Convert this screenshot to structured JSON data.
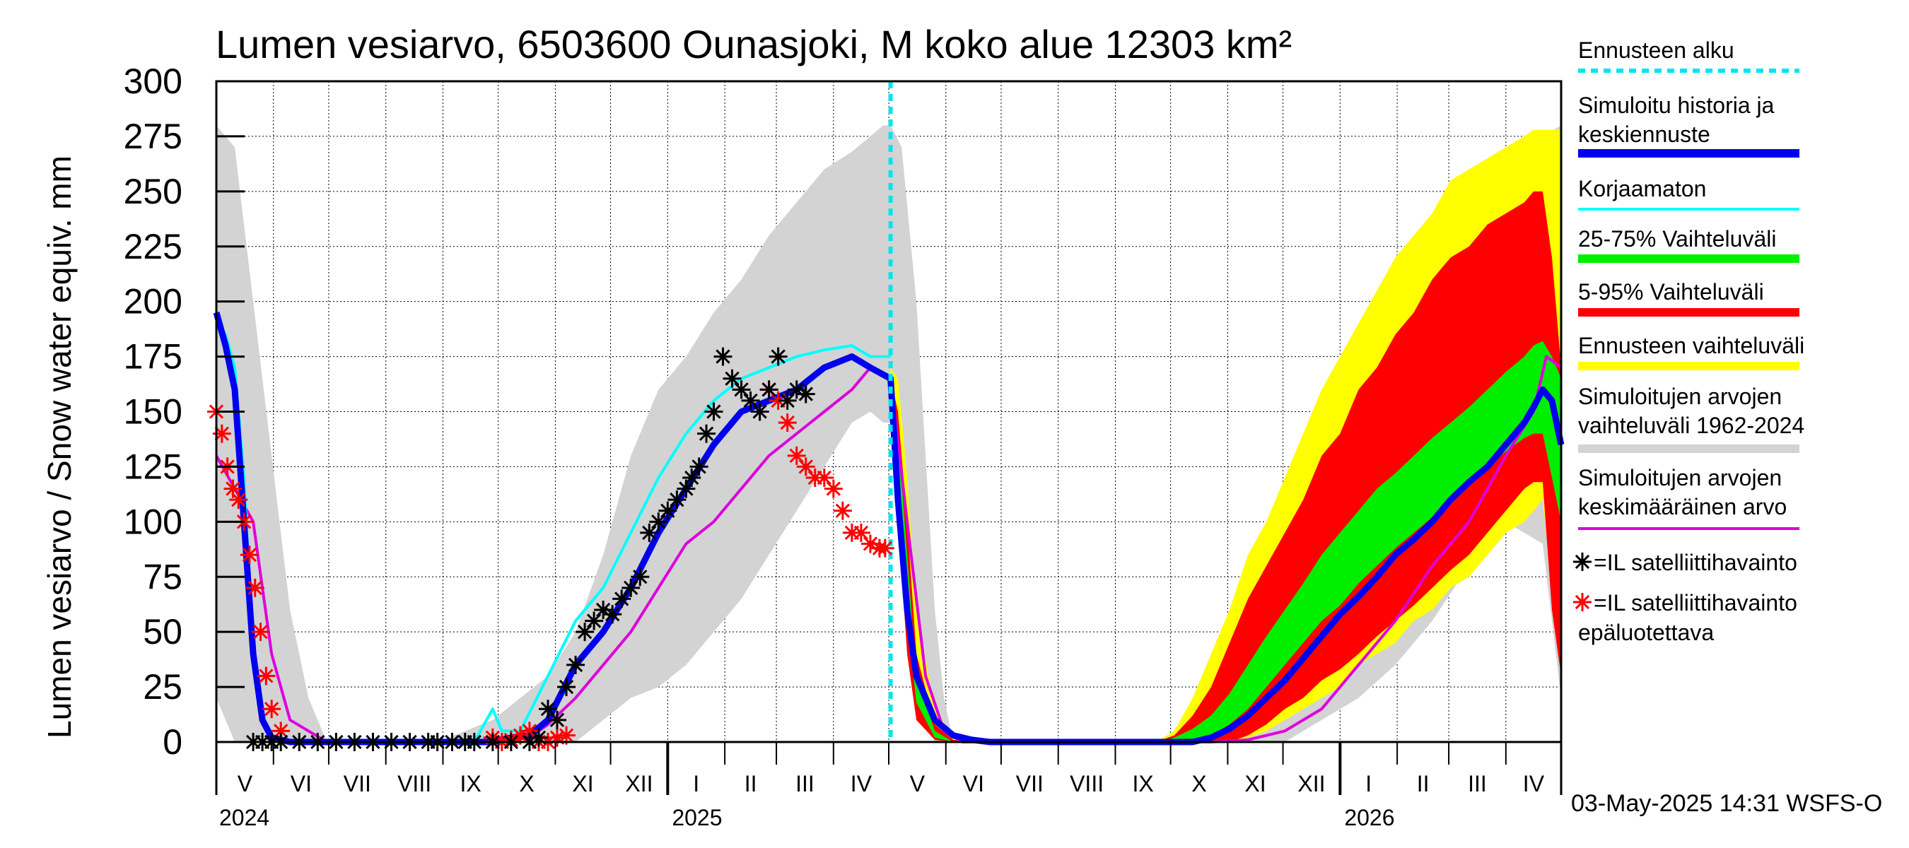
{
  "chart_data": {
    "type": "area",
    "title": "Lumen vesiarvo, 6503600 Ounasjoki, M koko alue 12303 km²",
    "ylabel": "Lumen vesiarvo / Snow water equiv.    mm",
    "ylim": [
      0,
      300
    ],
    "yticks": [
      0,
      25,
      50,
      75,
      100,
      125,
      150,
      175,
      200,
      225,
      250,
      275,
      300
    ],
    "month_labels": [
      "V",
      "VI",
      "VII",
      "VIII",
      "IX",
      "X",
      "XI",
      "XII",
      "I",
      "II",
      "III",
      "IV",
      "V",
      "VI",
      "VII",
      "VIII",
      "IX",
      "X",
      "XI",
      "XII",
      "I",
      "II",
      "III",
      "IV"
    ],
    "year_labels": [
      "2024",
      "2025",
      "2026"
    ],
    "footer": "03-May-2025 14:31 WSFS-O",
    "forecast_start_day": 366,
    "legend": [
      {
        "label": "Ennusteen alku",
        "color": "#00e5ee",
        "style": "dashed"
      },
      {
        "label": "Simuloitu historia ja",
        "label2": "keskiennuste",
        "color": "#0000ee",
        "style": "thick"
      },
      {
        "label": "Korjaamaton",
        "color": "#00ffff",
        "style": "line"
      },
      {
        "label": "25-75% Vaihteluväli",
        "color": "#00ee00",
        "style": "thick"
      },
      {
        "label": "5-95% Vaihteluväli",
        "color": "#ff0000",
        "style": "thick"
      },
      {
        "label": "Ennusteen vaihteluväli",
        "color": "#ffff00",
        "style": "thick"
      },
      {
        "label": "Simuloitujen arvojen",
        "label2": "vaihteluväli 1962-2024",
        "color": "#d3d3d3",
        "style": "thick"
      },
      {
        "label": "Simuloitujen arvojen",
        "label2": "keskimääräinen arvo",
        "color": "#dd00dd",
        "style": "line"
      },
      {
        "label": "=IL satelliittihavainto",
        "color": "#000000",
        "style": "star"
      },
      {
        "label": "=IL satelliittihavainto",
        "label2": "epäluotettava",
        "color": "#ff0000",
        "style": "star"
      }
    ],
    "series": {
      "hist_range": {
        "name": "Simuloitujen arvojen vaihteluväli 1962-2024",
        "color": "#d3d3d3",
        "days": [
          0,
          10,
          20,
          30,
          40,
          50,
          60,
          120,
          150,
          165,
          180,
          195,
          210,
          225,
          240,
          255,
          270,
          285,
          300,
          315,
          330,
          345,
          355,
          362,
          366,
          372,
          380,
          390,
          395,
          400,
          410,
          420,
          480,
          510,
          540,
          560,
          580,
          600,
          620,
          640,
          660,
          680,
          700,
          720,
          730
        ],
        "lower": [
          20,
          0,
          0,
          0,
          0,
          0,
          0,
          0,
          0,
          0,
          0,
          0,
          10,
          20,
          25,
          35,
          50,
          65,
          85,
          105,
          125,
          145,
          150,
          145,
          145,
          80,
          20,
          0,
          0,
          0,
          0,
          0,
          0,
          0,
          0,
          0,
          0,
          10,
          20,
          35,
          55,
          80,
          100,
          90,
          20
        ],
        "upper": [
          280,
          270,
          200,
          130,
          60,
          20,
          0,
          0,
          10,
          20,
          30,
          50,
          85,
          130,
          160,
          175,
          195,
          210,
          230,
          245,
          260,
          268,
          275,
          280,
          280,
          270,
          200,
          60,
          20,
          0,
          0,
          0,
          0,
          0,
          0,
          10,
          40,
          80,
          120,
          160,
          190,
          220,
          250,
          275,
          280
        ]
      },
      "mean": {
        "name": "Simuloitujen arvojen keskimääräinen arvo",
        "color": "#dd00dd",
        "days": [
          0,
          20,
          30,
          40,
          60,
          120,
          150,
          170,
          180,
          195,
          210,
          225,
          240,
          255,
          270,
          285,
          300,
          315,
          330,
          345,
          355,
          366,
          375,
          385,
          395,
          405,
          480,
          510,
          540,
          560,
          580,
          600,
          620,
          640,
          660,
          680,
          700,
          715,
          722,
          730
        ],
        "values": [
          130,
          100,
          40,
          10,
          0,
          0,
          0,
          2,
          8,
          20,
          35,
          50,
          70,
          90,
          100,
          115,
          130,
          140,
          150,
          160,
          170,
          165,
          100,
          30,
          5,
          0,
          0,
          0,
          0,
          1,
          5,
          15,
          35,
          55,
          80,
          100,
          130,
          150,
          175,
          170
        ]
      },
      "uncorrected": {
        "name": "Korjaamaton",
        "color": "#00ffff",
        "days": [
          0,
          5,
          10,
          15,
          20,
          25,
          30,
          40,
          60,
          120,
          140,
          150,
          155,
          165,
          180,
          195,
          210,
          225,
          240,
          255,
          270,
          285,
          300,
          315,
          330,
          345,
          355,
          366
        ],
        "values": [
          190,
          185,
          170,
          120,
          40,
          10,
          2,
          0,
          0,
          0,
          0,
          15,
          5,
          5,
          30,
          55,
          70,
          95,
          120,
          140,
          155,
          165,
          170,
          175,
          178,
          180,
          175,
          175
        ]
      },
      "simulated": {
        "name": "Simuloitu historia ja keskiennuste",
        "color": "#0000ee",
        "days": [
          0,
          5,
          10,
          15,
          20,
          25,
          30,
          40,
          60,
          120,
          150,
          160,
          170,
          180,
          195,
          210,
          225,
          240,
          255,
          270,
          285,
          300,
          315,
          330,
          345,
          355,
          366,
          370,
          375,
          380,
          390,
          400,
          410,
          420,
          480,
          530,
          540,
          550,
          560,
          570,
          580,
          590,
          600,
          610,
          620,
          630,
          640,
          650,
          660,
          670,
          680,
          690,
          700,
          710,
          715,
          720,
          725,
          730
        ],
        "values": [
          195,
          180,
          160,
          100,
          40,
          10,
          2,
          0,
          0,
          0,
          0,
          2,
          3,
          10,
          35,
          50,
          70,
          95,
          115,
          135,
          150,
          155,
          160,
          170,
          175,
          170,
          165,
          110,
          60,
          30,
          10,
          3,
          1,
          0,
          0,
          0,
          2,
          6,
          12,
          20,
          28,
          38,
          48,
          58,
          66,
          75,
          85,
          92,
          100,
          110,
          118,
          125,
          135,
          145,
          152,
          160,
          155,
          135
        ]
      },
      "forecast_range": {
        "name": "Ennusteen vaihteluväli",
        "color": "#ffff00",
        "days": [
          366,
          370,
          375,
          380,
          390,
          400,
          410,
          420,
          480,
          510,
          520,
          530,
          540,
          550,
          560,
          570,
          580,
          590,
          600,
          610,
          620,
          630,
          640,
          650,
          660,
          670,
          680,
          690,
          700,
          710,
          715,
          720,
          725,
          730
        ],
        "lower": [
          160,
          120,
          60,
          20,
          2,
          0,
          0,
          0,
          0,
          0,
          0,
          0,
          0,
          0,
          2,
          5,
          10,
          15,
          20,
          25,
          35,
          40,
          45,
          55,
          60,
          70,
          75,
          85,
          95,
          100,
          105,
          110,
          70,
          40
        ],
        "upper": [
          170,
          165,
          120,
          60,
          15,
          2,
          0,
          0,
          0,
          0,
          5,
          20,
          40,
          60,
          85,
          100,
          120,
          140,
          160,
          175,
          190,
          205,
          220,
          230,
          240,
          255,
          260,
          265,
          270,
          275,
          278,
          278,
          278,
          278
        ]
      },
      "p5_95": {
        "name": "5-95% Vaihteluväli",
        "color": "#ff0000",
        "days": [
          366,
          370,
          375,
          380,
          390,
          400,
          410,
          420,
          480,
          510,
          520,
          530,
          540,
          550,
          560,
          570,
          580,
          590,
          600,
          610,
          620,
          630,
          640,
          650,
          660,
          670,
          680,
          690,
          700,
          710,
          715,
          720,
          725,
          730
        ],
        "lower": [
          155,
          100,
          40,
          10,
          1,
          0,
          0,
          0,
          0,
          0,
          0,
          0,
          0,
          0,
          3,
          8,
          15,
          20,
          28,
          33,
          40,
          48,
          55,
          62,
          70,
          78,
          85,
          95,
          105,
          115,
          118,
          118,
          60,
          30
        ],
        "upper": [
          165,
          150,
          100,
          40,
          8,
          1,
          0,
          0,
          0,
          0,
          3,
          12,
          25,
          45,
          65,
          80,
          95,
          110,
          130,
          140,
          160,
          170,
          185,
          195,
          210,
          220,
          225,
          235,
          240,
          245,
          250,
          250,
          220,
          170
        ]
      },
      "p25_75": {
        "name": "25-75% Vaihteluväli",
        "color": "#00ee00",
        "days": [
          366,
          370,
          375,
          380,
          390,
          400,
          410,
          420,
          480,
          510,
          520,
          530,
          540,
          550,
          560,
          570,
          580,
          590,
          600,
          610,
          620,
          630,
          640,
          650,
          660,
          670,
          680,
          690,
          700,
          710,
          715,
          720,
          725,
          730
        ],
        "lower": [
          158,
          110,
          55,
          18,
          2,
          0,
          0,
          0,
          0,
          0,
          0,
          1,
          3,
          8,
          15,
          25,
          35,
          45,
          55,
          62,
          72,
          80,
          88,
          95,
          102,
          110,
          117,
          125,
          132,
          138,
          140,
          140,
          120,
          100
        ],
        "upper": [
          162,
          140,
          85,
          30,
          5,
          0,
          0,
          0,
          0,
          0,
          2,
          6,
          12,
          22,
          35,
          48,
          60,
          72,
          85,
          95,
          105,
          115,
          122,
          130,
          138,
          145,
          152,
          160,
          168,
          175,
          180,
          182,
          175,
          165
        ]
      },
      "satellite_reliable": {
        "name": "=IL satelliittihavainto",
        "color": "#000000",
        "days": [
          20,
          25,
          30,
          35,
          45,
          55,
          65,
          75,
          85,
          95,
          105,
          115,
          120,
          128,
          135,
          140,
          150,
          160,
          170,
          175,
          180,
          185,
          190,
          195,
          200,
          205,
          210,
          215,
          220,
          225,
          230,
          235,
          240,
          245,
          250,
          255,
          258,
          262,
          266,
          270,
          275,
          280,
          285,
          290,
          295,
          300,
          305,
          310,
          315,
          320
        ],
        "values": [
          0,
          0,
          0,
          0,
          0,
          0,
          0,
          0,
          0,
          0,
          0,
          0,
          0,
          0,
          0,
          0,
          0,
          0,
          0,
          2,
          15,
          10,
          25,
          35,
          50,
          55,
          60,
          58,
          65,
          70,
          75,
          95,
          100,
          105,
          110,
          115,
          120,
          125,
          140,
          150,
          175,
          165,
          160,
          155,
          150,
          160,
          175,
          155,
          160,
          158
        ]
      },
      "satellite_unreliable": {
        "name": "=IL satelliittihavainto epäluotettava",
        "color": "#ff0000",
        "days": [
          0,
          3,
          6,
          9,
          12,
          15,
          18,
          21,
          24,
          27,
          30,
          35,
          150,
          155,
          160,
          165,
          170,
          175,
          180,
          185,
          190,
          300,
          305,
          310,
          315,
          320,
          325,
          330,
          335,
          340,
          345,
          350,
          355,
          360,
          363
        ],
        "values": [
          150,
          140,
          125,
          115,
          110,
          100,
          85,
          70,
          50,
          30,
          15,
          5,
          2,
          0,
          1,
          3,
          5,
          0,
          0,
          2,
          3,
          160,
          155,
          145,
          130,
          125,
          120,
          120,
          115,
          105,
          95,
          95,
          90,
          88,
          88
        ]
      }
    }
  }
}
